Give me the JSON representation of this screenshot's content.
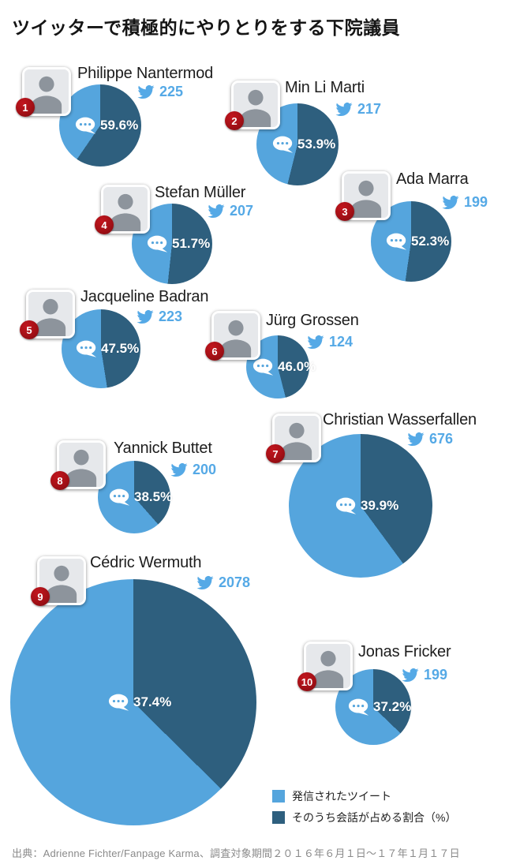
{
  "title": "ツイッターで積極的にやりとりをする下院議員",
  "colors": {
    "tweets": "#55a5dd",
    "conversation": "#2e5f7e",
    "twitter_blue": "#55a9e6",
    "rank_badge_red": "#a31016",
    "percent_text": "#ffffff"
  },
  "legend": {
    "tweets_label": "発信されたツイート",
    "conversation_label": "そのうち会話が占める割合（%）"
  },
  "source": "出典：Adrienne Fichter/Fanpage Karma、調査対象期間２０１６年６月１日～１７年１月１７日",
  "chart_data": {
    "type": "pie",
    "title": "ツイッターで積極的にやりとりをする下院議員",
    "legend": [
      "発信されたツイート",
      "そのうち会話が占める割合（%）"
    ],
    "legend_position": "bottom-right",
    "encoding": "pie area scales with tweet count; dark slice = conversation share, starting at 12 o'clock clockwise",
    "members": [
      {
        "rank": 1,
        "name": "Philippe Nantermod",
        "tweets": 225,
        "conversation_pct": 59.6,
        "pct_label": "59.6%"
      },
      {
        "rank": 2,
        "name": "Min Li Marti",
        "tweets": 217,
        "conversation_pct": 53.9,
        "pct_label": "53.9%"
      },
      {
        "rank": 3,
        "name": "Ada Marra",
        "tweets": 199,
        "conversation_pct": 52.3,
        "pct_label": "52.3%"
      },
      {
        "rank": 4,
        "name": "Stefan Müller",
        "tweets": 207,
        "conversation_pct": 51.7,
        "pct_label": "51.7%"
      },
      {
        "rank": 5,
        "name": "Jacqueline Badran",
        "tweets": 223,
        "conversation_pct": 47.5,
        "pct_label": "47.5%"
      },
      {
        "rank": 6,
        "name": "Jürg Grossen",
        "tweets": 124,
        "conversation_pct": 46.0,
        "pct_label": "46.0%"
      },
      {
        "rank": 7,
        "name": "Christian Wasserfallen",
        "tweets": 676,
        "conversation_pct": 39.9,
        "pct_label": "39.9%"
      },
      {
        "rank": 8,
        "name": "Yannick Buttet",
        "tweets": 200,
        "conversation_pct": 38.5,
        "pct_label": "38.5%"
      },
      {
        "rank": 9,
        "name": "Cédric Wermuth",
        "tweets": 2078,
        "conversation_pct": 37.4,
        "pct_label": "37.4%"
      },
      {
        "rank": 10,
        "name": "Jonas Fricker",
        "tweets": 199,
        "conversation_pct": 37.2,
        "pct_label": "37.2%"
      }
    ]
  }
}
